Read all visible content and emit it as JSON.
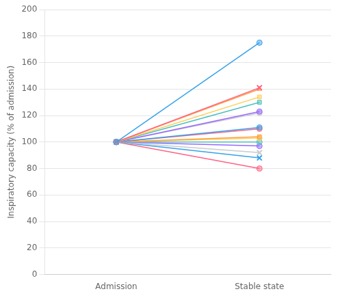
{
  "chart_data": {
    "type": "line",
    "categories": [
      "Admission",
      "Stable state"
    ],
    "ylabel": "Inspiratory capacity (% of admission)",
    "ylim": [
      0,
      200
    ],
    "yticks": [
      0,
      20,
      40,
      60,
      80,
      100,
      120,
      140,
      160,
      180,
      200
    ],
    "grid": true,
    "series": [
      {
        "values": [
          100,
          175
        ],
        "marker": "circle"
      },
      {
        "values": [
          100,
          141
        ],
        "marker": "x"
      },
      {
        "values": [
          100,
          140
        ],
        "marker": "triangle"
      },
      {
        "values": [
          100,
          134
        ],
        "marker": "square"
      },
      {
        "values": [
          100,
          130
        ],
        "marker": "square"
      },
      {
        "values": [
          100,
          123
        ],
        "marker": "circle"
      },
      {
        "values": [
          100,
          122
        ],
        "marker": "circle"
      },
      {
        "values": [
          100,
          111
        ],
        "marker": "circle"
      },
      {
        "values": [
          100,
          110
        ],
        "marker": "circle"
      },
      {
        "values": [
          100,
          104
        ],
        "marker": "square"
      },
      {
        "values": [
          100,
          103
        ],
        "marker": "circle"
      },
      {
        "values": [
          100,
          100
        ],
        "marker": "circle"
      },
      {
        "values": [
          100,
          97
        ],
        "marker": "circle"
      },
      {
        "values": [
          100,
          92
        ],
        "marker": "x"
      },
      {
        "values": [
          100,
          88
        ],
        "marker": "x"
      },
      {
        "values": [
          100,
          80
        ],
        "marker": "circle"
      }
    ]
  }
}
